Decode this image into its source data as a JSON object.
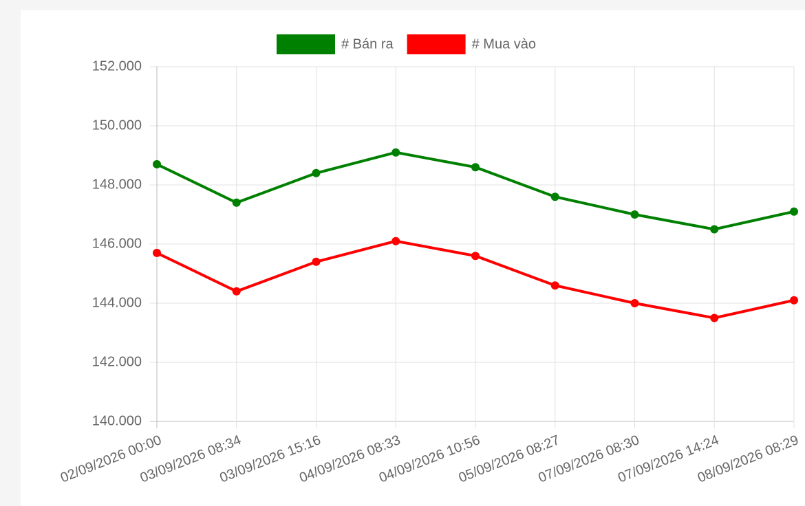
{
  "chart_data": {
    "type": "line",
    "categories": [
      "02/09/2026 00:00",
      "03/09/2026 08:34",
      "03/09/2026 15:16",
      "04/09/2026 08:33",
      "04/09/2026 10:56",
      "05/09/2026 08:27",
      "07/09/2026 08:30",
      "07/09/2026 14:24",
      "08/09/2026 08:29"
    ],
    "series": [
      {
        "name": "# Bán ra",
        "color": "#008000",
        "values": [
          148700,
          147400,
          148400,
          149100,
          148600,
          147600,
          147000,
          146500,
          147100
        ]
      },
      {
        "name": "# Mua vào",
        "color": "#ff0000",
        "values": [
          145700,
          144400,
          145400,
          146100,
          145600,
          144600,
          144000,
          143500,
          144100
        ]
      }
    ],
    "ylim": [
      140000,
      152000
    ],
    "yticks": [
      {
        "value": 140000,
        "label": "140.000"
      },
      {
        "value": 142000,
        "label": "142.000"
      },
      {
        "value": 144000,
        "label": "144.000"
      },
      {
        "value": 146000,
        "label": "146.000"
      },
      {
        "value": 148000,
        "label": "148.000"
      },
      {
        "value": 150000,
        "label": "150.000"
      },
      {
        "value": 152000,
        "label": "152.000"
      }
    ],
    "grid": true
  }
}
